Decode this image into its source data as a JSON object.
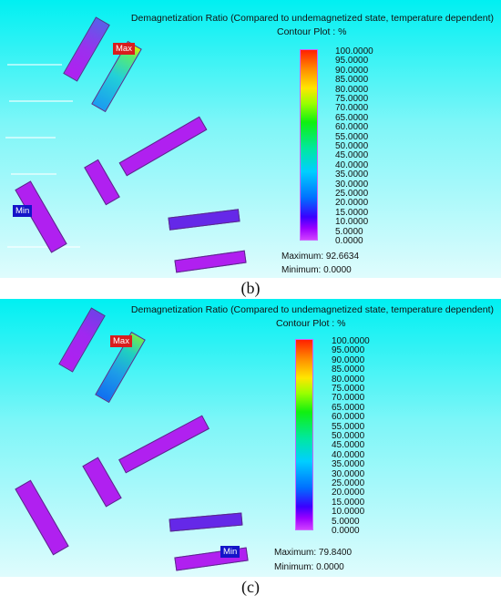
{
  "panels": [
    {
      "title": "Demagnetization Ratio (Compared to undemagnetized state, temperature dependent)",
      "subtitle": "Contour Plot : %",
      "scale_ticks": [
        "100.0000",
        "95.0000",
        "90.0000",
        "85.0000",
        "80.0000",
        "75.0000",
        "70.0000",
        "65.0000",
        "60.0000",
        "55.0000",
        "50.0000",
        "45.0000",
        "40.0000",
        "35.0000",
        "30.0000",
        "25.0000",
        "20.0000",
        "15.0000",
        "10.0000",
        "5.0000",
        "0.0000"
      ],
      "maximum": "Maximum: 92.6634",
      "minimum": "Minimum: 0.0000",
      "max_marker": "Max",
      "min_marker": "Min",
      "caption": "(b)"
    },
    {
      "title": "Demagnetization Ratio (Compared to undemagnetized state, temperature dependent)",
      "subtitle": "Contour Plot : %",
      "scale_ticks": [
        "100.0000",
        "95.0000",
        "90.0000",
        "85.0000",
        "80.0000",
        "75.0000",
        "70.0000",
        "65.0000",
        "60.0000",
        "55.0000",
        "50.0000",
        "45.0000",
        "40.0000",
        "35.0000",
        "30.0000",
        "25.0000",
        "20.0000",
        "15.0000",
        "10.0000",
        "5.0000",
        "0.0000"
      ],
      "maximum": "Maximum: 79.8400",
      "minimum": "Minimum: 0.0000",
      "max_marker": "Max",
      "min_marker": "Min",
      "caption": "(c)"
    }
  ],
  "colors": {
    "magnet_low": "#b020f0",
    "magnet_mid": "#5a2ae0",
    "magnet_high": "#00b8d0",
    "max_marker": "#d91d1d",
    "min_marker": "#1414c8"
  }
}
